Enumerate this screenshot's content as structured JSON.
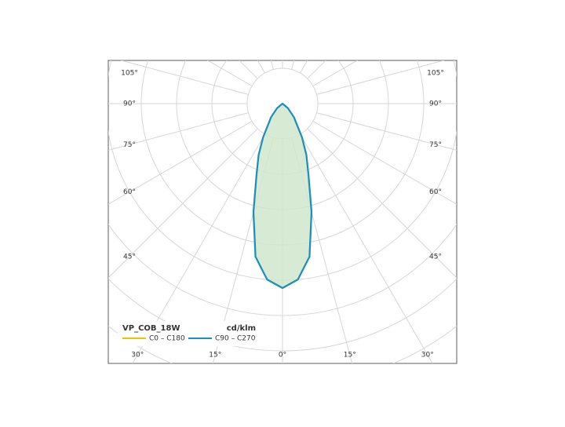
{
  "chart_data": {
    "type": "polar",
    "legend_title": "VP_COB_18W",
    "unit": "cd/klm",
    "angles": [
      -60,
      -50,
      -40,
      -30,
      -25,
      -20,
      -15,
      -10,
      -5,
      0,
      5,
      10,
      15,
      20,
      25,
      30,
      40,
      50,
      60
    ],
    "series": [
      {
        "name": "C0 – C180",
        "color": "#f2c200",
        "values": [
          0,
          20,
          50,
          110,
          160,
          215,
          318,
          440,
          500,
          522,
          500,
          440,
          318,
          215,
          160,
          110,
          50,
          20,
          0
        ]
      },
      {
        "name": "C90 – C270",
        "color": "#1a8fc4",
        "fill": "#cfe6cc",
        "values": [
          0,
          20,
          50,
          110,
          160,
          215,
          318,
          440,
          500,
          522,
          500,
          440,
          318,
          215,
          160,
          110,
          50,
          20,
          0
        ]
      }
    ],
    "rlim": [
      0,
      900
    ],
    "rticks": [
      100,
      200,
      300,
      400,
      500,
      600,
      700,
      800,
      900
    ],
    "angle_ticks": [
      {
        "value": -105,
        "label": "105°"
      },
      {
        "value": -90,
        "label": "90°"
      },
      {
        "value": -75,
        "label": "75°"
      },
      {
        "value": -60,
        "label": "60°"
      },
      {
        "value": -45,
        "label": "45°"
      },
      {
        "value": -30,
        "label": "30°"
      },
      {
        "value": -15,
        "label": "15°"
      },
      {
        "value": 0,
        "label": "0°"
      },
      {
        "value": 15,
        "label": "15°"
      },
      {
        "value": 30,
        "label": "30°"
      },
      {
        "value": 45,
        "label": "45°"
      },
      {
        "value": 60,
        "label": "60°"
      },
      {
        "value": 75,
        "label": "75°"
      },
      {
        "value": 90,
        "label": "90°"
      },
      {
        "value": 105,
        "label": "105°"
      }
    ],
    "grid": true
  }
}
